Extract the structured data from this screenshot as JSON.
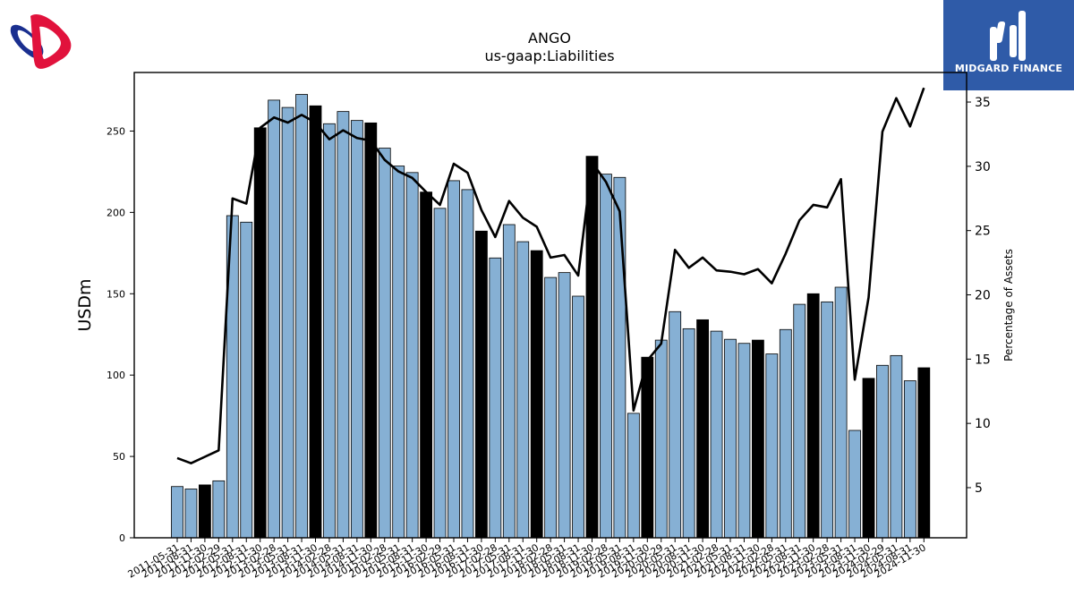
{
  "chart_data": {
    "type": "bar",
    "title": "ANGO",
    "subtitle": "us-gaap:Liabilities",
    "ylabel": "USDm",
    "y2label": "Percentage of Assets",
    "ylim": [
      0,
      286
    ],
    "y2lim": [
      1.1,
      37.3
    ],
    "yticks": [
      0,
      50,
      100,
      150,
      200,
      250
    ],
    "y2ticks": [
      5,
      10,
      15,
      20,
      25,
      30,
      35
    ],
    "grid": false,
    "categories": [
      "2011-05-31",
      "2011-08-31",
      "2011-11-30",
      "2012-02-29",
      "2012-05-31",
      "2012-08-31",
      "2012-11-30",
      "2013-02-28",
      "2013-05-31",
      "2013-08-31",
      "2013-11-30",
      "2014-02-28",
      "2014-05-31",
      "2014-08-31",
      "2014-11-30",
      "2015-02-28",
      "2015-05-31",
      "2015-08-31",
      "2015-11-30",
      "2016-02-29",
      "2016-05-31",
      "2016-08-31",
      "2016-11-30",
      "2017-02-28",
      "2017-05-31",
      "2017-08-31",
      "2017-11-30",
      "2018-02-28",
      "2018-05-31",
      "2018-08-31",
      "2018-11-30",
      "2019-02-28",
      "2019-05-31",
      "2019-08-31",
      "2019-11-30",
      "2020-02-29",
      "2020-05-31",
      "2020-08-31",
      "2020-11-30",
      "2021-02-28",
      "2021-05-31",
      "2021-08-31",
      "2021-11-30",
      "2022-02-28",
      "2022-05-31",
      "2022-08-31",
      "2022-11-30",
      "2023-02-28",
      "2023-05-31",
      "2023-08-31",
      "2023-11-30",
      "2024-02-29",
      "2024-05-31",
      "2024-08-31",
      "2024-11-30"
    ],
    "fiscal_year_end": [
      false,
      false,
      true,
      false,
      false,
      false,
      true,
      false,
      false,
      false,
      true,
      false,
      false,
      false,
      true,
      false,
      false,
      false,
      true,
      false,
      false,
      false,
      true,
      false,
      false,
      false,
      true,
      false,
      false,
      false,
      true,
      false,
      false,
      false,
      true,
      false,
      false,
      false,
      true,
      false,
      false,
      false,
      true,
      false,
      false,
      false,
      true,
      false,
      false,
      false,
      true,
      false,
      false,
      false,
      true
    ],
    "colors": {
      "bar": "#86b0d4",
      "bar_year_end": "#000000",
      "line": "#000000"
    },
    "series": [
      {
        "type": "bar",
        "axis": "left",
        "values": [
          31.5,
          30,
          32.5,
          35,
          198,
          194,
          252,
          269,
          264.5,
          272.5,
          265.5,
          254.5,
          262,
          256.5,
          255,
          239.5,
          228.5,
          224.5,
          212.5,
          202.5,
          219.5,
          214,
          188.5,
          172,
          192.5,
          182,
          176.5,
          160,
          163,
          148.5,
          234.5,
          223.5,
          221.5,
          76.5,
          111,
          121.5,
          139,
          128.5,
          134,
          127,
          122,
          119.5,
          121.5,
          113,
          128,
          143.5,
          150,
          145,
          154,
          66,
          98,
          106,
          112,
          96.5,
          104.5
        ]
      },
      {
        "type": "line",
        "axis": "right",
        "values": [
          7.3,
          6.9,
          7.4,
          7.9,
          27.5,
          27.1,
          33.0,
          33.8,
          33.4,
          34.0,
          33.4,
          32.1,
          32.8,
          32.2,
          32.0,
          30.5,
          29.6,
          29.1,
          28.0,
          27.0,
          30.2,
          29.5,
          26.6,
          24.5,
          27.3,
          26.0,
          25.3,
          22.9,
          23.1,
          21.5,
          30.3,
          28.8,
          26.5,
          11.0,
          14.9,
          16.2,
          23.5,
          22.1,
          22.9,
          21.9,
          21.8,
          21.6,
          22.0,
          20.9,
          23.2,
          25.8,
          27.0,
          26.8,
          29.0,
          13.4,
          19.8,
          32.7,
          35.3,
          33.1,
          36.1
        ]
      }
    ]
  },
  "brand": {
    "name": "MIDGARD FINANCE"
  }
}
